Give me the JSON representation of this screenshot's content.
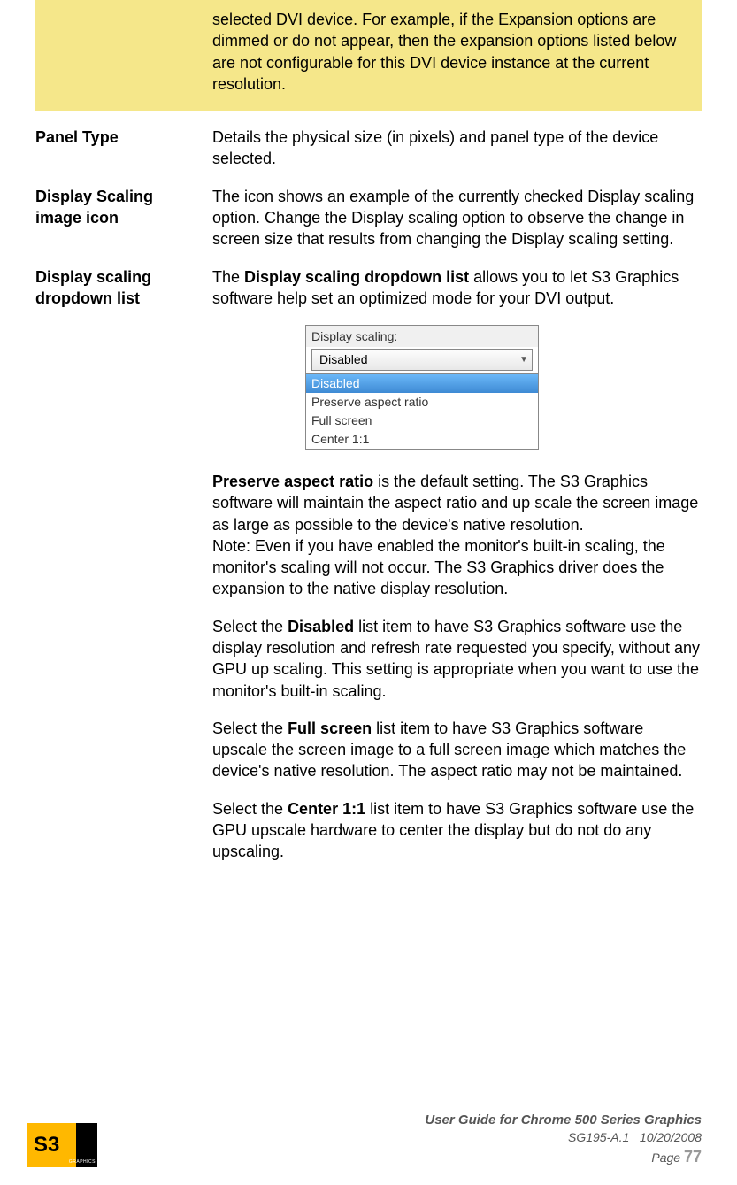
{
  "highlight": {
    "term": "",
    "text": "selected DVI device. For example, if the Expansion options are dimmed or do not appear, then the expansion options listed below are not configurable for this DVI device instance at the current resolution."
  },
  "rows": [
    {
      "term": "Panel Type",
      "paragraphs": [
        {
          "segments": [
            {
              "text": "Details the physical size (in pixels) and panel type of the device selected.",
              "bold": false
            }
          ]
        }
      ]
    },
    {
      "term": "Display Scaling image icon",
      "paragraphs": [
        {
          "segments": [
            {
              "text": "The icon shows an example of the currently checked Display scaling option. Change the Display scaling option to observe the change in screen size that results from changing the Display scaling setting.",
              "bold": false
            }
          ]
        }
      ]
    }
  ],
  "dropdown_row": {
    "term": "Display scaling dropdown list",
    "intro": {
      "segments": [
        {
          "text": "The ",
          "bold": false
        },
        {
          "text": "Display scaling dropdown list",
          "bold": true
        },
        {
          "text": " allows you to let S3 Graphics software help set an optimized mode for your DVI output.",
          "bold": false
        }
      ]
    },
    "dropdown": {
      "label": "Display scaling:",
      "selected": "Disabled",
      "options": [
        {
          "label": "Disabled",
          "highlighted": true
        },
        {
          "label": "Preserve aspect ratio",
          "highlighted": false
        },
        {
          "label": "Full screen",
          "highlighted": false
        },
        {
          "label": "Center 1:1",
          "highlighted": false
        }
      ]
    },
    "paragraphs": [
      {
        "segments": [
          {
            "text": "Preserve aspect ratio",
            "bold": true
          },
          {
            "text": " is the default setting. The S3 Graphics software will maintain the aspect ratio and up scale the screen image as large as possible to the device's native resolution.",
            "bold": false
          }
        ],
        "spacing_after": false
      },
      {
        "segments": [
          {
            "text": "Note: Even if you have enabled the monitor's built-in scaling, the monitor's scaling will not occur. The S3 Graphics driver does the expansion to the native display resolution.",
            "bold": false
          }
        ],
        "spacing_after": true
      },
      {
        "segments": [
          {
            "text": "Select the ",
            "bold": false
          },
          {
            "text": "Disabled",
            "bold": true
          },
          {
            "text": " list item to have S3 Graphics software use the display resolution and refresh rate requested you specify, without any GPU up scaling. This setting is appropriate when you want to use the monitor's built-in scaling.",
            "bold": false
          }
        ],
        "spacing_after": true
      },
      {
        "segments": [
          {
            "text": "Select the ",
            "bold": false
          },
          {
            "text": "Full screen",
            "bold": true
          },
          {
            "text": " list item to have S3 Graphics software upscale the screen image to a full screen image which matches the device's native resolution. The aspect ratio may not be maintained.",
            "bold": false
          }
        ],
        "spacing_after": true
      },
      {
        "segments": [
          {
            "text": "Select the ",
            "bold": false
          },
          {
            "text": "Center 1:1",
            "bold": true
          },
          {
            "text": " list item to have S3 Graphics software use the GPU upscale hardware to center the display but do not do any upscaling.",
            "bold": false
          }
        ],
        "spacing_after": false
      }
    ]
  },
  "footer": {
    "logo_text": "S3",
    "logo_sub": "GRAPHICS",
    "title": "User Guide for Chrome 500 Series Graphics",
    "doc_id": "SG195-A.1",
    "date": "10/20/2008",
    "page_label": "Page",
    "page_number": "77"
  }
}
